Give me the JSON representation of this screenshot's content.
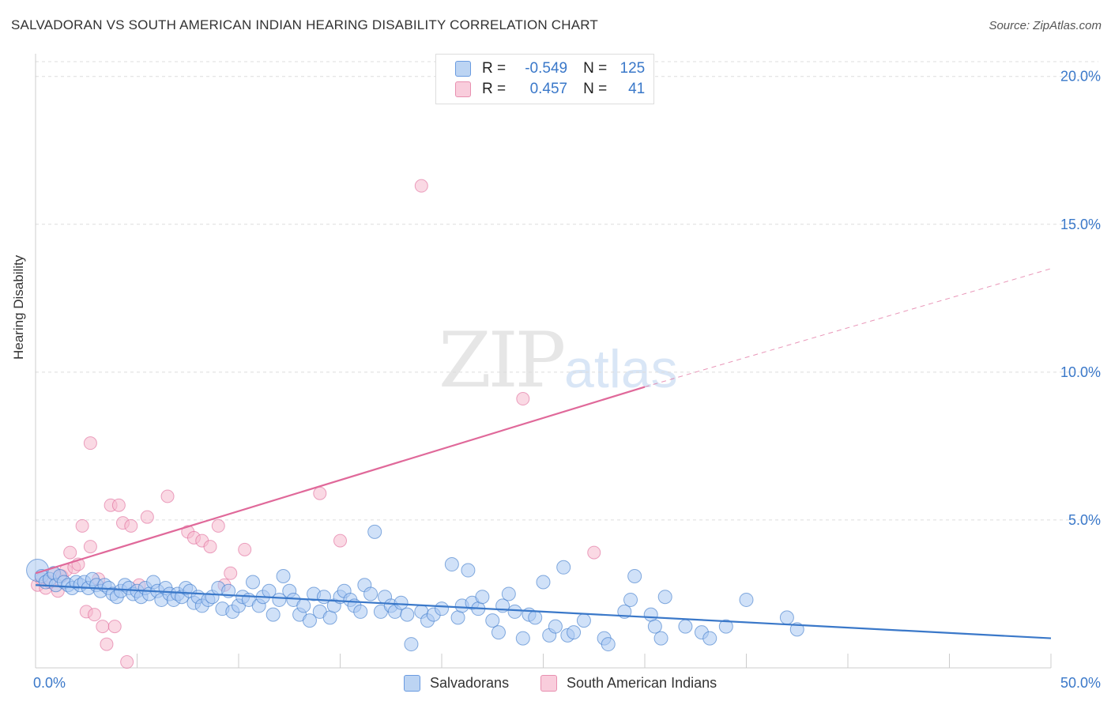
{
  "header": {
    "title": "SALVADORAN VS SOUTH AMERICAN INDIAN HEARING DISABILITY CORRELATION CHART",
    "source": "Source: ZipAtlas.com"
  },
  "watermark": {
    "zip": "ZIP",
    "atlas": "atlas"
  },
  "colors": {
    "blue": "#3a78c9",
    "blue_fill": "#a9c8f2",
    "pink": "#e0699a",
    "pink_fill": "#f6b9cd",
    "grid": "#dddddd"
  },
  "legend": {
    "rows": [
      {
        "r_label": "R =",
        "r_value": "-0.549",
        "n_label": "N =",
        "n_value": "125"
      },
      {
        "r_label": "R =",
        "r_value": "0.457",
        "n_label": "N =",
        "n_value": "41"
      }
    ]
  },
  "bottom_legend": {
    "series1": "Salvadorans",
    "series2": "South American Indians"
  },
  "chart_data": {
    "type": "scatter",
    "title": "SALVADORAN VS SOUTH AMERICAN INDIAN HEARING DISABILITY CORRELATION CHART",
    "xlabel": "",
    "ylabel": "Hearing Disability",
    "xlim": [
      0,
      50
    ],
    "ylim": [
      0,
      20.5
    ],
    "x_tick_labels": {
      "left": "0.0%",
      "right": "50.0%"
    },
    "y_ticks": [
      {
        "value": 5,
        "label": "5.0%"
      },
      {
        "value": 10,
        "label": "10.0%"
      },
      {
        "value": 15,
        "label": "15.0%"
      },
      {
        "value": 20,
        "label": "20.0%"
      }
    ],
    "series": [
      {
        "name": "Salvadorans",
        "r": -0.549,
        "n": 125,
        "trend": {
          "x0": 0,
          "y0": 2.8,
          "x1": 50,
          "y1": 1.0
        },
        "points": [
          [
            0.1,
            3.3
          ],
          [
            0.3,
            3.1
          ],
          [
            0.5,
            2.9
          ],
          [
            0.7,
            3.0
          ],
          [
            0.9,
            3.2
          ],
          [
            1.0,
            2.8
          ],
          [
            1.2,
            3.1
          ],
          [
            1.4,
            2.9
          ],
          [
            1.6,
            2.8
          ],
          [
            1.8,
            2.7
          ],
          [
            2.0,
            2.9
          ],
          [
            2.2,
            2.8
          ],
          [
            2.4,
            2.9
          ],
          [
            2.6,
            2.7
          ],
          [
            2.8,
            3.0
          ],
          [
            3.0,
            2.8
          ],
          [
            3.2,
            2.6
          ],
          [
            3.4,
            2.8
          ],
          [
            3.6,
            2.7
          ],
          [
            3.8,
            2.5
          ],
          [
            4.0,
            2.4
          ],
          [
            4.2,
            2.6
          ],
          [
            4.4,
            2.8
          ],
          [
            4.6,
            2.7
          ],
          [
            4.8,
            2.5
          ],
          [
            5.0,
            2.6
          ],
          [
            5.2,
            2.4
          ],
          [
            5.4,
            2.7
          ],
          [
            5.6,
            2.5
          ],
          [
            5.8,
            2.9
          ],
          [
            6.0,
            2.6
          ],
          [
            6.2,
            2.3
          ],
          [
            6.4,
            2.7
          ],
          [
            6.6,
            2.5
          ],
          [
            6.8,
            2.3
          ],
          [
            7.0,
            2.5
          ],
          [
            7.2,
            2.4
          ],
          [
            7.4,
            2.7
          ],
          [
            7.6,
            2.6
          ],
          [
            7.8,
            2.2
          ],
          [
            8.0,
            2.4
          ],
          [
            8.2,
            2.1
          ],
          [
            8.5,
            2.3
          ],
          [
            8.7,
            2.4
          ],
          [
            9.0,
            2.7
          ],
          [
            9.2,
            2.0
          ],
          [
            9.5,
            2.6
          ],
          [
            9.7,
            1.9
          ],
          [
            10.0,
            2.1
          ],
          [
            10.2,
            2.4
          ],
          [
            10.5,
            2.3
          ],
          [
            10.7,
            2.9
          ],
          [
            11.0,
            2.1
          ],
          [
            11.2,
            2.4
          ],
          [
            11.5,
            2.6
          ],
          [
            11.7,
            1.8
          ],
          [
            12.0,
            2.3
          ],
          [
            12.2,
            3.1
          ],
          [
            12.5,
            2.6
          ],
          [
            12.7,
            2.3
          ],
          [
            13.0,
            1.8
          ],
          [
            13.2,
            2.1
          ],
          [
            13.5,
            1.6
          ],
          [
            13.7,
            2.5
          ],
          [
            14.0,
            1.9
          ],
          [
            14.2,
            2.4
          ],
          [
            14.5,
            1.7
          ],
          [
            14.7,
            2.1
          ],
          [
            15.0,
            2.4
          ],
          [
            15.2,
            2.6
          ],
          [
            15.5,
            2.3
          ],
          [
            15.7,
            2.1
          ],
          [
            16.0,
            1.9
          ],
          [
            16.2,
            2.8
          ],
          [
            16.5,
            2.5
          ],
          [
            16.7,
            4.6
          ],
          [
            17.0,
            1.9
          ],
          [
            17.2,
            2.4
          ],
          [
            17.5,
            2.1
          ],
          [
            17.7,
            1.9
          ],
          [
            18.0,
            2.2
          ],
          [
            18.3,
            1.8
          ],
          [
            18.5,
            0.8
          ],
          [
            19.0,
            1.9
          ],
          [
            19.3,
            1.6
          ],
          [
            19.6,
            1.8
          ],
          [
            20.0,
            2.0
          ],
          [
            20.5,
            3.5
          ],
          [
            20.8,
            1.7
          ],
          [
            21.0,
            2.1
          ],
          [
            21.3,
            3.3
          ],
          [
            21.5,
            2.2
          ],
          [
            21.8,
            2.0
          ],
          [
            22.0,
            2.4
          ],
          [
            22.5,
            1.6
          ],
          [
            22.8,
            1.2
          ],
          [
            23.0,
            2.1
          ],
          [
            23.3,
            2.5
          ],
          [
            23.6,
            1.9
          ],
          [
            24.0,
            1.0
          ],
          [
            24.3,
            1.8
          ],
          [
            24.6,
            1.7
          ],
          [
            25.0,
            2.9
          ],
          [
            25.3,
            1.1
          ],
          [
            25.6,
            1.4
          ],
          [
            26.0,
            3.4
          ],
          [
            26.2,
            1.1
          ],
          [
            26.5,
            1.2
          ],
          [
            27.0,
            1.6
          ],
          [
            28.0,
            1.0
          ],
          [
            28.2,
            0.8
          ],
          [
            29.0,
            1.9
          ],
          [
            29.3,
            2.3
          ],
          [
            29.5,
            3.1
          ],
          [
            30.3,
            1.8
          ],
          [
            30.5,
            1.4
          ],
          [
            30.8,
            1.0
          ],
          [
            31.0,
            2.4
          ],
          [
            32.0,
            1.4
          ],
          [
            32.8,
            1.2
          ],
          [
            33.2,
            1.0
          ],
          [
            34.0,
            1.4
          ],
          [
            35.0,
            2.3
          ],
          [
            37.0,
            1.7
          ],
          [
            37.5,
            1.3
          ]
        ]
      },
      {
        "name": "South American Indians",
        "r": 0.457,
        "n": 41,
        "trend": {
          "x0": 0,
          "y0": 3.2,
          "x1": 30,
          "y1": 9.5,
          "dash_to_x": 50,
          "dash_to_y": 13.5
        },
        "points": [
          [
            0.1,
            2.8
          ],
          [
            0.3,
            3.0
          ],
          [
            0.5,
            2.7
          ],
          [
            0.7,
            2.9
          ],
          [
            0.9,
            3.2
          ],
          [
            1.1,
            2.6
          ],
          [
            1.3,
            3.1
          ],
          [
            1.5,
            3.3
          ],
          [
            1.7,
            3.9
          ],
          [
            1.9,
            3.4
          ],
          [
            2.1,
            3.5
          ],
          [
            2.3,
            4.8
          ],
          [
            2.5,
            1.9
          ],
          [
            2.7,
            4.1
          ],
          [
            2.9,
            1.8
          ],
          [
            3.1,
            3.0
          ],
          [
            3.3,
            1.4
          ],
          [
            3.5,
            0.8
          ],
          [
            3.7,
            5.5
          ],
          [
            3.9,
            1.4
          ],
          [
            4.1,
            5.5
          ],
          [
            4.3,
            4.9
          ],
          [
            4.5,
            0.2
          ],
          [
            4.7,
            4.8
          ],
          [
            5.1,
            2.8
          ],
          [
            5.5,
            5.1
          ],
          [
            6.5,
            5.8
          ],
          [
            7.5,
            4.6
          ],
          [
            7.8,
            4.4
          ],
          [
            8.2,
            4.3
          ],
          [
            8.6,
            4.1
          ],
          [
            9.0,
            4.8
          ],
          [
            9.3,
            2.8
          ],
          [
            9.6,
            3.2
          ],
          [
            10.3,
            4.0
          ],
          [
            14.0,
            5.9
          ],
          [
            15.0,
            4.3
          ],
          [
            19.0,
            16.3
          ],
          [
            24.0,
            9.1
          ],
          [
            27.5,
            3.9
          ],
          [
            2.7,
            7.6
          ]
        ]
      }
    ]
  }
}
